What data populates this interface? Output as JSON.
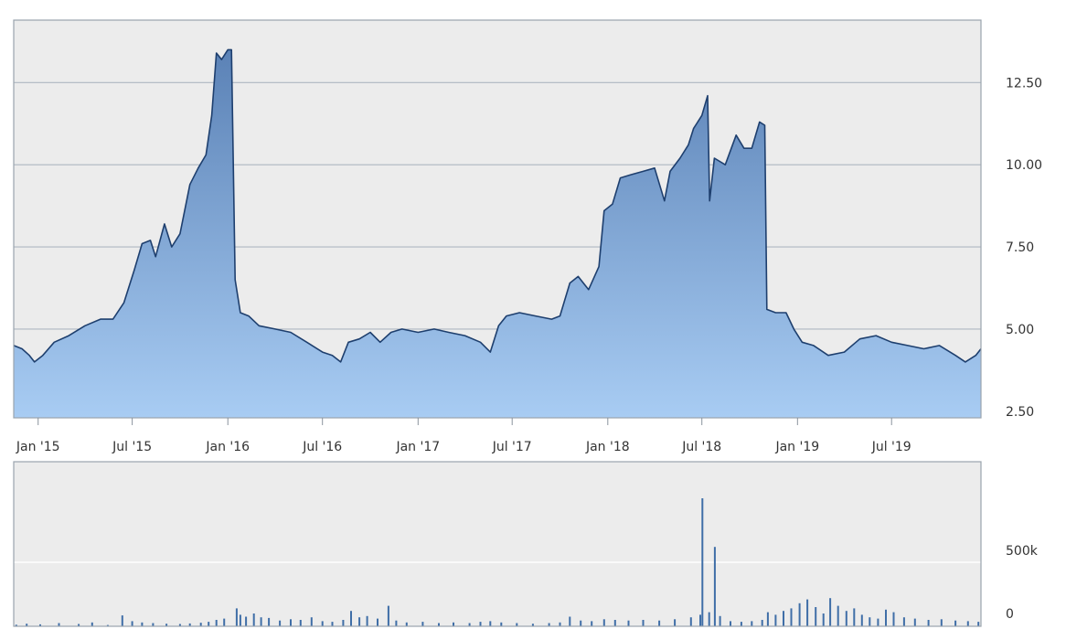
{
  "chart_data": [
    {
      "type": "area",
      "title": "",
      "xlabel": "",
      "ylabel": "",
      "x_ticks": [
        "Jan '15",
        "Jul '15",
        "Jan '16",
        "Jul '16",
        "Jan '17",
        "Jul '17",
        "Jan '18",
        "Jul '18",
        "Jan '19",
        "Jul '19"
      ],
      "y_ticks": [
        "2.50",
        "5.00",
        "7.50",
        "10.00",
        "12.50"
      ],
      "ylim": [
        2.3,
        14.4
      ],
      "xlim": [
        "2014-11-15",
        "2019-12-20"
      ],
      "grid": true,
      "y_axis_side": "right",
      "fill_gradient": [
        "#5b82b6",
        "#a8ccf3"
      ],
      "line_color": "#1e3f6e",
      "series": [
        {
          "points": [
            [
              "2014-11-15",
              4.5
            ],
            [
              "2014-12-01",
              4.4
            ],
            [
              "2014-12-15",
              4.2
            ],
            [
              "2014-12-25",
              4.0
            ],
            [
              "2015-01-10",
              4.2
            ],
            [
              "2015-02-01",
              4.6
            ],
            [
              "2015-03-01",
              4.8
            ],
            [
              "2015-04-01",
              5.1
            ],
            [
              "2015-05-01",
              5.3
            ],
            [
              "2015-05-25",
              5.3
            ],
            [
              "2015-06-15",
              5.8
            ],
            [
              "2015-07-05",
              6.8
            ],
            [
              "2015-07-20",
              7.6
            ],
            [
              "2015-08-05",
              7.7
            ],
            [
              "2015-08-15",
              7.2
            ],
            [
              "2015-09-01",
              8.2
            ],
            [
              "2015-09-15",
              7.5
            ],
            [
              "2015-10-01",
              7.9
            ],
            [
              "2015-10-20",
              9.4
            ],
            [
              "2015-11-05",
              9.9
            ],
            [
              "2015-11-20",
              10.3
            ],
            [
              "2015-12-01",
              11.5
            ],
            [
              "2015-12-10",
              13.4
            ],
            [
              "2015-12-20",
              13.2
            ],
            [
              "2016-01-01",
              13.5
            ],
            [
              "2016-01-08",
              13.5
            ],
            [
              "2016-01-15",
              6.5
            ],
            [
              "2016-01-25",
              5.5
            ],
            [
              "2016-02-10",
              5.4
            ],
            [
              "2016-03-01",
              5.1
            ],
            [
              "2016-04-01",
              5.0
            ],
            [
              "2016-05-01",
              4.9
            ],
            [
              "2016-06-01",
              4.6
            ],
            [
              "2016-07-01",
              4.3
            ],
            [
              "2016-07-20",
              4.2
            ],
            [
              "2016-08-05",
              4.0
            ],
            [
              "2016-08-20",
              4.6
            ],
            [
              "2016-09-10",
              4.7
            ],
            [
              "2016-10-01",
              4.9
            ],
            [
              "2016-10-20",
              4.6
            ],
            [
              "2016-11-10",
              4.9
            ],
            [
              "2016-12-01",
              5.0
            ],
            [
              "2017-01-01",
              4.9
            ],
            [
              "2017-02-01",
              5.0
            ],
            [
              "2017-03-01",
              4.9
            ],
            [
              "2017-04-01",
              4.8
            ],
            [
              "2017-05-01",
              4.6
            ],
            [
              "2017-05-20",
              4.3
            ],
            [
              "2017-06-05",
              5.1
            ],
            [
              "2017-06-20",
              5.4
            ],
            [
              "2017-07-15",
              5.5
            ],
            [
              "2017-08-15",
              5.4
            ],
            [
              "2017-09-15",
              5.3
            ],
            [
              "2017-10-01",
              5.4
            ],
            [
              "2017-10-20",
              6.4
            ],
            [
              "2017-11-05",
              6.6
            ],
            [
              "2017-11-25",
              6.2
            ],
            [
              "2017-12-15",
              6.9
            ],
            [
              "2017-12-25",
              8.6
            ],
            [
              "2018-01-10",
              8.8
            ],
            [
              "2018-01-25",
              9.6
            ],
            [
              "2018-02-15",
              9.7
            ],
            [
              "2018-03-10",
              9.8
            ],
            [
              "2018-04-01",
              9.9
            ],
            [
              "2018-04-20",
              8.9
            ],
            [
              "2018-05-01",
              9.8
            ],
            [
              "2018-05-20",
              10.2
            ],
            [
              "2018-06-05",
              10.6
            ],
            [
              "2018-06-15",
              11.1
            ],
            [
              "2018-07-01",
              11.5
            ],
            [
              "2018-07-12",
              12.1
            ],
            [
              "2018-07-16",
              8.9
            ],
            [
              "2018-07-25",
              10.2
            ],
            [
              "2018-08-15",
              10.0
            ],
            [
              "2018-09-05",
              10.9
            ],
            [
              "2018-09-20",
              10.5
            ],
            [
              "2018-10-05",
              10.5
            ],
            [
              "2018-10-20",
              11.3
            ],
            [
              "2018-10-30",
              11.2
            ],
            [
              "2018-11-03",
              5.6
            ],
            [
              "2018-11-20",
              5.5
            ],
            [
              "2018-12-10",
              5.5
            ],
            [
              "2018-12-25",
              5.0
            ],
            [
              "2019-01-10",
              4.6
            ],
            [
              "2019-02-01",
              4.5
            ],
            [
              "2019-03-01",
              4.2
            ],
            [
              "2019-04-01",
              4.3
            ],
            [
              "2019-05-01",
              4.7
            ],
            [
              "2019-06-01",
              4.8
            ],
            [
              "2019-07-01",
              4.6
            ],
            [
              "2019-08-01",
              4.5
            ],
            [
              "2019-09-01",
              4.4
            ],
            [
              "2019-10-01",
              4.5
            ],
            [
              "2019-11-01",
              4.2
            ],
            [
              "2019-11-20",
              4.0
            ],
            [
              "2019-12-10",
              4.2
            ],
            [
              "2019-12-20",
              4.4
            ]
          ]
        }
      ]
    },
    {
      "type": "bar",
      "title": "",
      "xlabel": "",
      "ylabel": "",
      "y_ticks": [
        "0",
        "500k"
      ],
      "ylim": [
        0,
        1000000
      ],
      "grid": true,
      "y_axis_side": "right",
      "bar_color": "#3f6ea7",
      "series": [
        {
          "points": [
            [
              "2014-11-20",
              12000
            ],
            [
              "2014-12-10",
              20000
            ],
            [
              "2015-01-05",
              15000
            ],
            [
              "2015-02-10",
              25000
            ],
            [
              "2015-03-20",
              18000
            ],
            [
              "2015-04-15",
              30000
            ],
            [
              "2015-05-15",
              10000
            ],
            [
              "2015-06-12",
              85000
            ],
            [
              "2015-07-01",
              40000
            ],
            [
              "2015-07-20",
              30000
            ],
            [
              "2015-08-10",
              25000
            ],
            [
              "2015-09-05",
              20000
            ],
            [
              "2015-10-01",
              18000
            ],
            [
              "2015-10-20",
              22000
            ],
            [
              "2015-11-10",
              28000
            ],
            [
              "2015-11-25",
              35000
            ],
            [
              "2015-12-10",
              50000
            ],
            [
              "2015-12-25",
              60000
            ],
            [
              "2016-01-18",
              140000
            ],
            [
              "2016-01-25",
              90000
            ],
            [
              "2016-02-05",
              75000
            ],
            [
              "2016-02-20",
              100000
            ],
            [
              "2016-03-05",
              70000
            ],
            [
              "2016-03-20",
              65000
            ],
            [
              "2016-04-10",
              45000
            ],
            [
              "2016-05-01",
              55000
            ],
            [
              "2016-05-20",
              50000
            ],
            [
              "2016-06-10",
              70000
            ],
            [
              "2016-07-01",
              40000
            ],
            [
              "2016-07-20",
              35000
            ],
            [
              "2016-08-10",
              50000
            ],
            [
              "2016-08-25",
              120000
            ],
            [
              "2016-09-10",
              70000
            ],
            [
              "2016-09-25",
              80000
            ],
            [
              "2016-10-15",
              60000
            ],
            [
              "2016-11-05",
              160000
            ],
            [
              "2016-11-20",
              45000
            ],
            [
              "2016-12-10",
              30000
            ],
            [
              "2017-01-10",
              35000
            ],
            [
              "2017-02-10",
              25000
            ],
            [
              "2017-03-10",
              30000
            ],
            [
              "2017-04-10",
              25000
            ],
            [
              "2017-05-01",
              35000
            ],
            [
              "2017-05-20",
              40000
            ],
            [
              "2017-06-10",
              30000
            ],
            [
              "2017-07-10",
              25000
            ],
            [
              "2017-08-10",
              20000
            ],
            [
              "2017-09-10",
              25000
            ],
            [
              "2017-10-01",
              30000
            ],
            [
              "2017-10-20",
              75000
            ],
            [
              "2017-11-10",
              45000
            ],
            [
              "2017-12-01",
              40000
            ],
            [
              "2017-12-25",
              55000
            ],
            [
              "2018-01-15",
              50000
            ],
            [
              "2018-02-10",
              45000
            ],
            [
              "2018-03-10",
              50000
            ],
            [
              "2018-04-10",
              45000
            ],
            [
              "2018-05-10",
              55000
            ],
            [
              "2018-06-10",
              70000
            ],
            [
              "2018-06-28",
              90000
            ],
            [
              "2018-07-02",
              1000000
            ],
            [
              "2018-07-15",
              110000
            ],
            [
              "2018-07-26",
              620000
            ],
            [
              "2018-08-05",
              80000
            ],
            [
              "2018-08-25",
              40000
            ],
            [
              "2018-09-15",
              35000
            ],
            [
              "2018-10-05",
              40000
            ],
            [
              "2018-10-25",
              50000
            ],
            [
              "2018-11-05",
              110000
            ],
            [
              "2018-11-20",
              90000
            ],
            [
              "2018-12-05",
              120000
            ],
            [
              "2018-12-20",
              140000
            ],
            [
              "2019-01-05",
              180000
            ],
            [
              "2019-01-20",
              210000
            ],
            [
              "2019-02-05",
              150000
            ],
            [
              "2019-02-20",
              100000
            ],
            [
              "2019-03-05",
              220000
            ],
            [
              "2019-03-20",
              160000
            ],
            [
              "2019-04-05",
              120000
            ],
            [
              "2019-04-20",
              140000
            ],
            [
              "2019-05-05",
              90000
            ],
            [
              "2019-05-20",
              70000
            ],
            [
              "2019-06-05",
              60000
            ],
            [
              "2019-06-20",
              130000
            ],
            [
              "2019-07-05",
              110000
            ],
            [
              "2019-07-25",
              70000
            ],
            [
              "2019-08-15",
              60000
            ],
            [
              "2019-09-10",
              50000
            ],
            [
              "2019-10-05",
              55000
            ],
            [
              "2019-11-01",
              45000
            ],
            [
              "2019-11-25",
              40000
            ],
            [
              "2019-12-15",
              35000
            ]
          ]
        }
      ]
    }
  ]
}
